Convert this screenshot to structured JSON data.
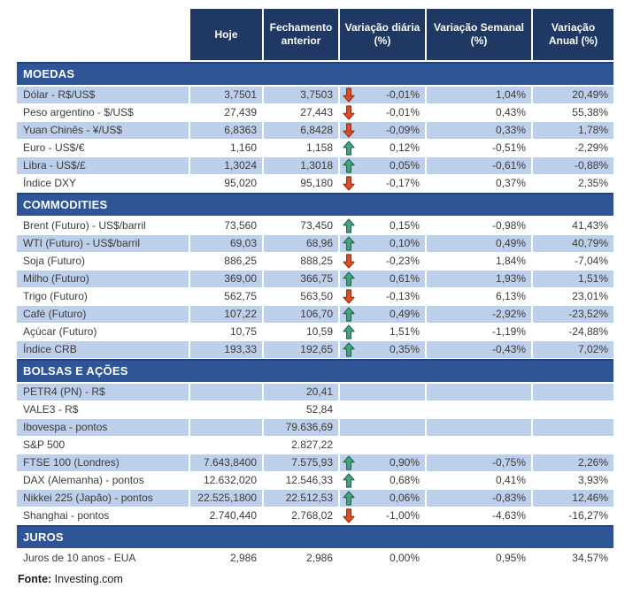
{
  "header": {
    "columns": [
      {
        "l1": "Hoje",
        "l2": ""
      },
      {
        "l1": "Fechamento",
        "l2": "anterior"
      },
      {
        "l1": "Variação diária",
        "l2": "(%)"
      },
      {
        "l1": "Variação Semanal",
        "l2": "(%)"
      },
      {
        "l1": "Variação",
        "l2": "Anual (%)"
      }
    ]
  },
  "colors": {
    "header_navy": "#1f3864",
    "section_blue": "#2f5597",
    "stripe_light_blue": "#bdcfe9",
    "arrow_up_green": "#4ea17e",
    "arrow_down_red": "#d9512a"
  },
  "sections": [
    {
      "title": "MOEDAS",
      "stripe_start": "light",
      "rows": [
        {
          "label": "Dólar - R$/US$",
          "hoje": "3,7501",
          "fechamento": "3,7503",
          "arrow": "down",
          "diaria": "-0,01%",
          "semanal": "1,04%",
          "anual": "20,49%"
        },
        {
          "label": "Peso argentino - $/US$",
          "hoje": "27,439",
          "fechamento": "27,443",
          "arrow": "down",
          "diaria": "-0,01%",
          "semanal": "0,43%",
          "anual": "55,38%"
        },
        {
          "label": "Yuan Chinês - ¥/US$",
          "hoje": "6,8363",
          "fechamento": "6,8428",
          "arrow": "down",
          "diaria": "-0,09%",
          "semanal": "0,33%",
          "anual": "1,78%"
        },
        {
          "label": "Euro - US$/€",
          "hoje": "1,160",
          "fechamento": "1,158",
          "arrow": "up",
          "diaria": "0,12%",
          "semanal": "-0,51%",
          "anual": "-2,29%"
        },
        {
          "label": "Libra - US$/£",
          "hoje": "1,3024",
          "fechamento": "1,3018",
          "arrow": "up",
          "diaria": "0,05%",
          "semanal": "-0,61%",
          "anual": "-0,88%"
        },
        {
          "label": "Índice DXY",
          "hoje": "95,020",
          "fechamento": "95,180",
          "arrow": "down",
          "diaria": "-0,17%",
          "semanal": "0,37%",
          "anual": "2,35%"
        }
      ]
    },
    {
      "title": "COMMODITIES",
      "stripe_start": "white",
      "rows": [
        {
          "label": "Brent (Futuro) - US$/barril",
          "hoje": "73,560",
          "fechamento": "73,450",
          "arrow": "up",
          "diaria": "0,15%",
          "semanal": "-0,98%",
          "anual": "41,43%"
        },
        {
          "label": "WTI (Futuro) - US$/barril",
          "hoje": "69,03",
          "fechamento": "68,96",
          "arrow": "up",
          "diaria": "0,10%",
          "semanal": "0,49%",
          "anual": "40,79%"
        },
        {
          "label": "Soja (Futuro)",
          "hoje": "886,25",
          "fechamento": "888,25",
          "arrow": "down",
          "diaria": "-0,23%",
          "semanal": "1,84%",
          "anual": "-7,04%"
        },
        {
          "label": "Milho (Futuro)",
          "hoje": "369,00",
          "fechamento": "366,75",
          "arrow": "up",
          "diaria": "0,61%",
          "semanal": "1,93%",
          "anual": "1,51%"
        },
        {
          "label": "Trigo (Futuro)",
          "hoje": "562,75",
          "fechamento": "563,50",
          "arrow": "down",
          "diaria": "-0,13%",
          "semanal": "6,13%",
          "anual": "23,01%"
        },
        {
          "label": "Café (Futuro)",
          "hoje": "107,22",
          "fechamento": "106,70",
          "arrow": "up",
          "diaria": "0,49%",
          "semanal": "-2,92%",
          "anual": "-23,52%"
        },
        {
          "label": "Açúcar (Futuro)",
          "hoje": "10,75",
          "fechamento": "10,59",
          "arrow": "up",
          "diaria": "1,51%",
          "semanal": "-1,19%",
          "anual": "-24,88%"
        },
        {
          "label": "Índice CRB",
          "hoje": "193,33",
          "fechamento": "192,65",
          "arrow": "up",
          "diaria": "0,35%",
          "semanal": "-0,43%",
          "anual": "7,02%"
        }
      ]
    },
    {
      "title": "BOLSAS E AÇÕES",
      "stripe_start": "light",
      "rows": [
        {
          "label": "PETR4 (PN) - R$",
          "hoje": "",
          "fechamento": "20,41",
          "arrow": "",
          "diaria": "",
          "semanal": "",
          "anual": ""
        },
        {
          "label": "VALE3 - R$",
          "hoje": "",
          "fechamento": "52,84",
          "arrow": "",
          "diaria": "",
          "semanal": "",
          "anual": ""
        },
        {
          "label": "Ibovespa - pontos",
          "hoje": "",
          "fechamento": "79.636,69",
          "arrow": "",
          "diaria": "",
          "semanal": "",
          "anual": ""
        },
        {
          "label": "S&P 500",
          "hoje": "",
          "fechamento": "2.827,22",
          "arrow": "",
          "diaria": "",
          "semanal": "",
          "anual": ""
        },
        {
          "label": "FTSE 100 (Londres)",
          "hoje": "7.643,8400",
          "fechamento": "7.575,93",
          "arrow": "up",
          "diaria": "0,90%",
          "semanal": "-0,75%",
          "anual": "2,26%"
        },
        {
          "label": "DAX (Alemanha) - pontos",
          "hoje": "12.632,020",
          "fechamento": "12.546,33",
          "arrow": "up",
          "diaria": "0,68%",
          "semanal": "0,41%",
          "anual": "3,93%"
        },
        {
          "label": "Nikkei 225 (Japão) - pontos",
          "hoje": "22.525,1800",
          "fechamento": "22.512,53",
          "arrow": "up",
          "diaria": "0,06%",
          "semanal": "-0,83%",
          "anual": "12,46%"
        },
        {
          "label": "Shanghai - pontos",
          "hoje": "2.740,440",
          "fechamento": "2.768,02",
          "arrow": "down",
          "diaria": "-1,00%",
          "semanal": "-4,63%",
          "anual": "-16,27%"
        }
      ]
    },
    {
      "title": "JUROS",
      "stripe_start": "white",
      "rows": [
        {
          "label": "Juros de 10 anos - EUA",
          "hoje": "2,986",
          "fechamento": "2,986",
          "arrow": "",
          "diaria": "0,00%",
          "semanal": "0,95%",
          "anual": "34,57%"
        }
      ]
    }
  ],
  "footer": {
    "source_label": "Fonte:",
    "source_value": "Investing.com"
  }
}
